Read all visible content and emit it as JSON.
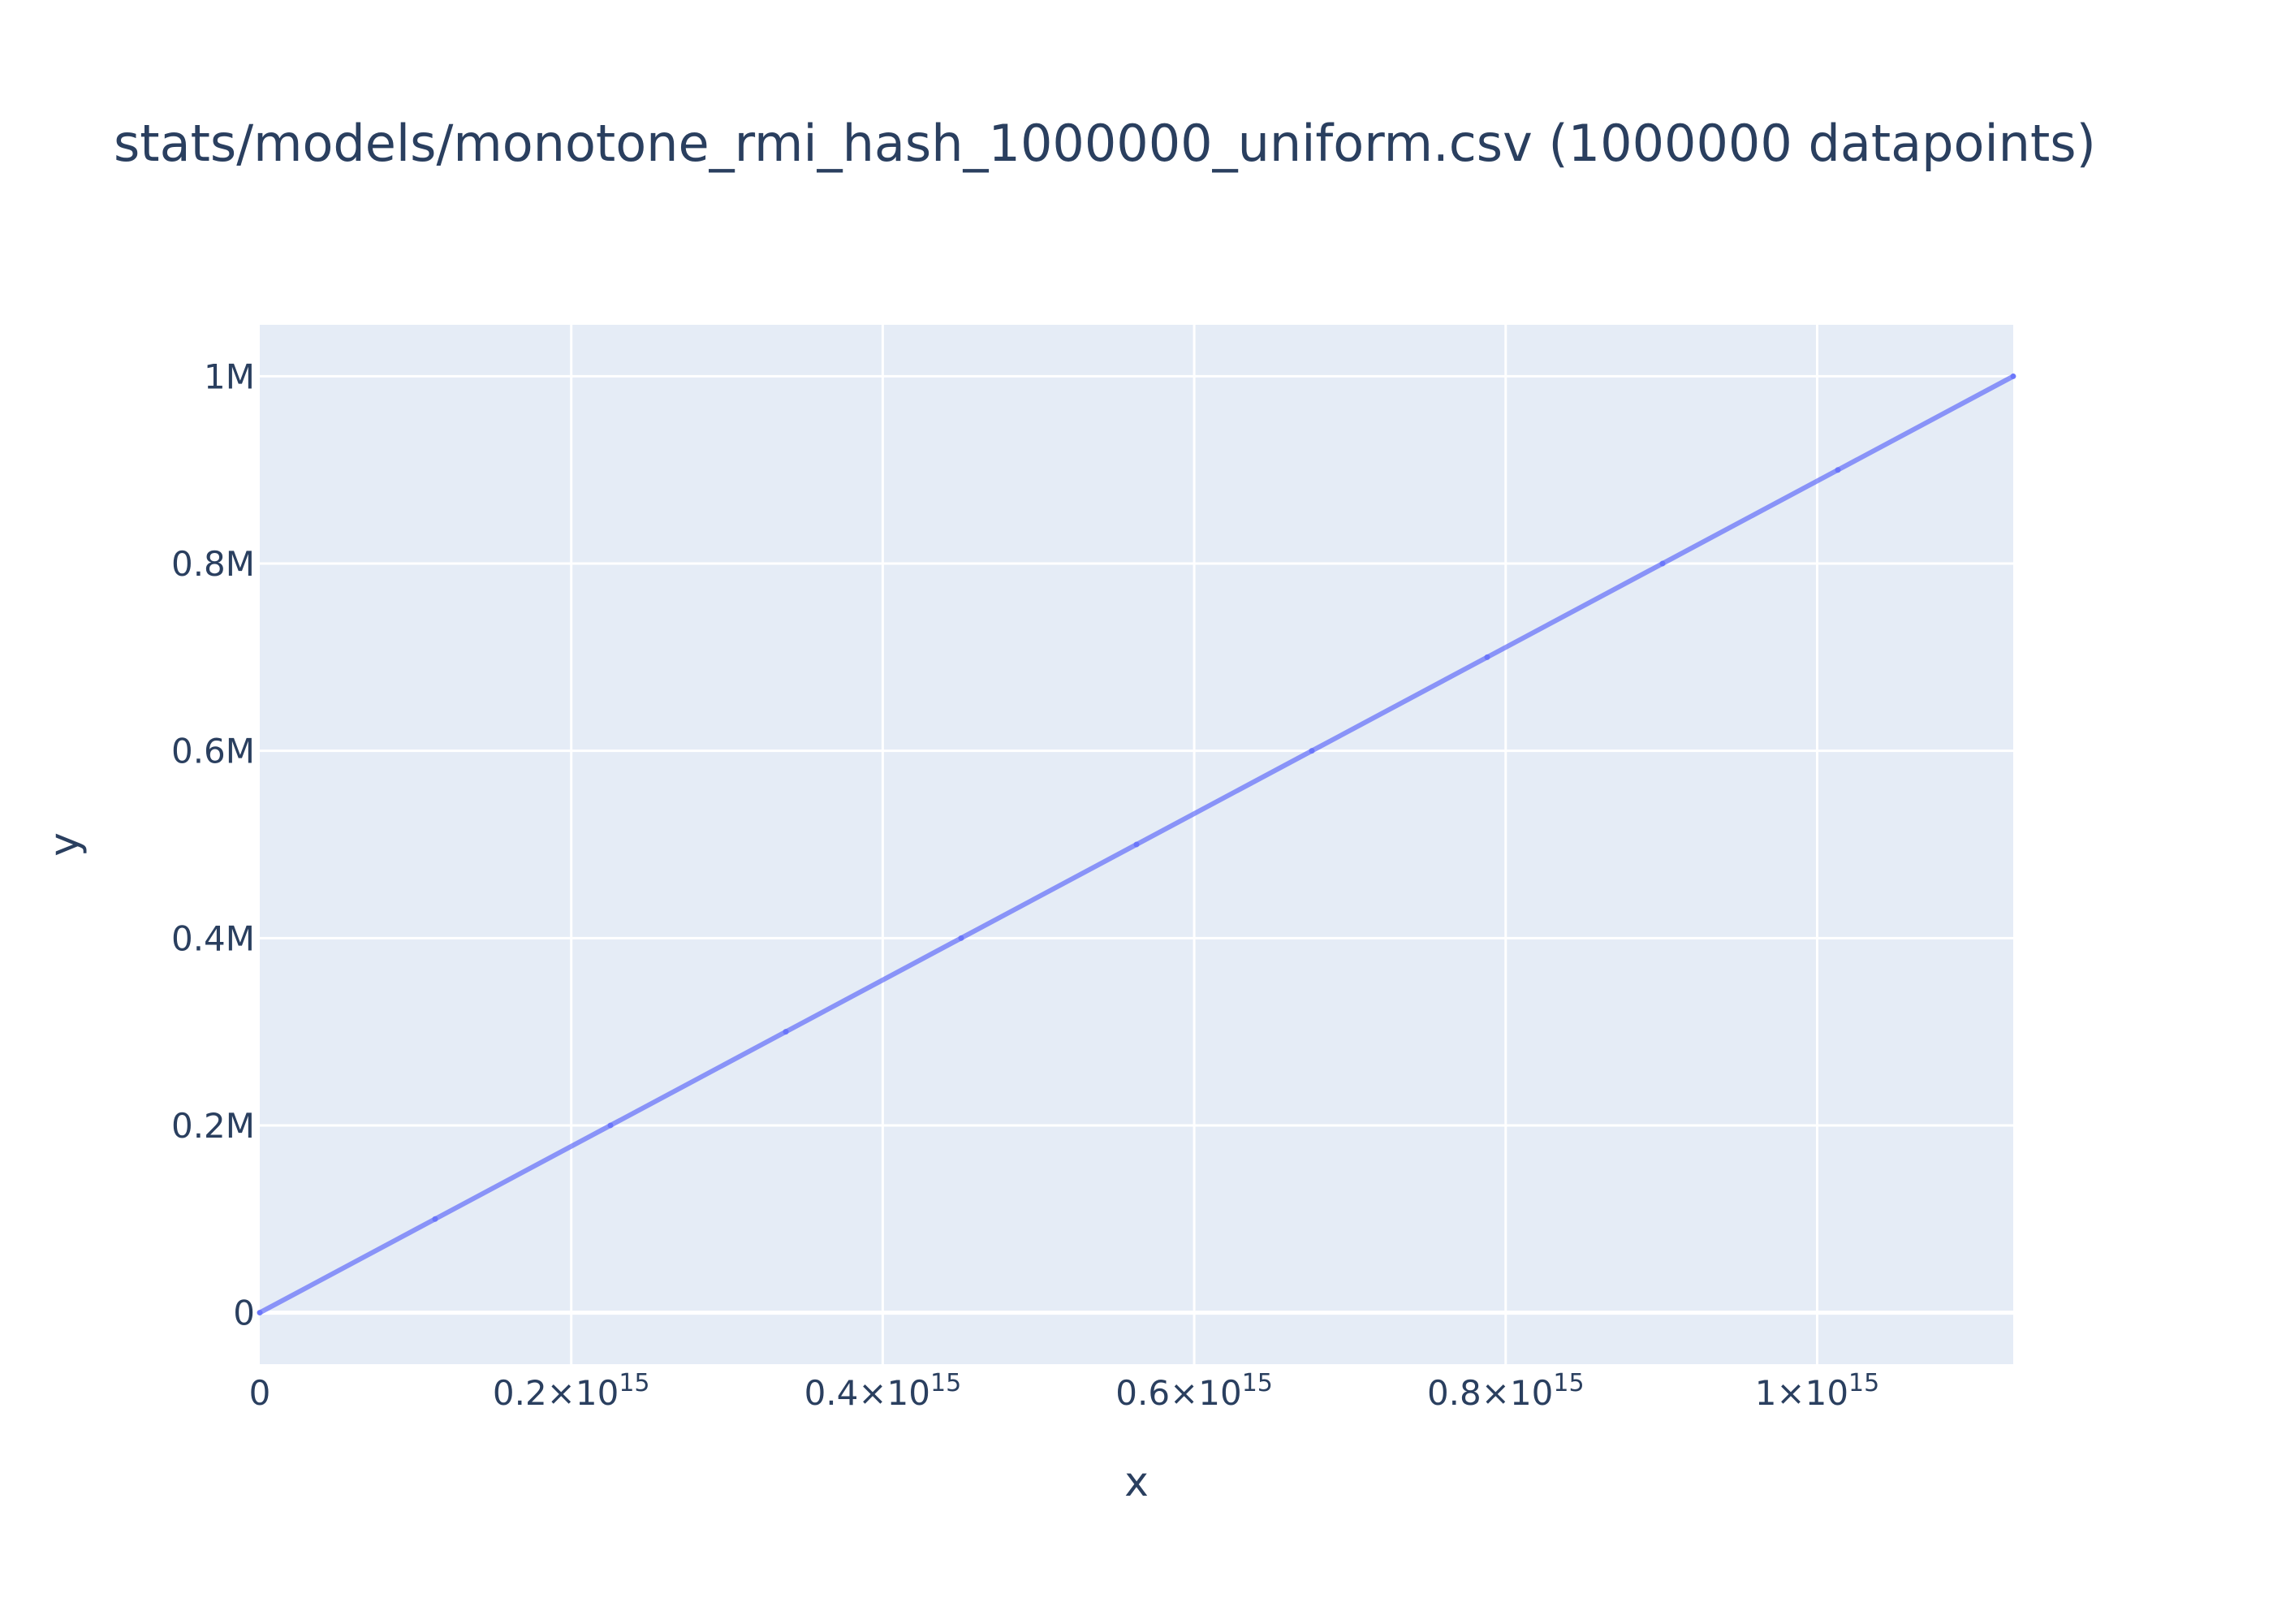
{
  "chart_data": {
    "type": "scatter",
    "title": "stats/models/monotone_rmi_hash_1000000_uniform.csv (1000000 datapoints)",
    "xlabel": "x",
    "ylabel": "y",
    "xlim": [
      0,
      1125899906842624
    ],
    "ylim": [
      -55000,
      1055000
    ],
    "grid": true,
    "x_ticks": [
      {
        "value": 0,
        "label": "0",
        "exp": ""
      },
      {
        "value": 200000000000000,
        "label": "0.2×10",
        "exp": "15"
      },
      {
        "value": 400000000000000,
        "label": "0.4×10",
        "exp": "15"
      },
      {
        "value": 600000000000000,
        "label": "0.6×10",
        "exp": "15"
      },
      {
        "value": 800000000000000,
        "label": "0.8×10",
        "exp": "15"
      },
      {
        "value": 1000000000000000,
        "label": "1×10",
        "exp": "15"
      }
    ],
    "y_ticks": [
      {
        "value": 0,
        "label": "0"
      },
      {
        "value": 200000,
        "label": "0.2M"
      },
      {
        "value": 400000,
        "label": "0.4M"
      },
      {
        "value": 600000,
        "label": "0.6M"
      },
      {
        "value": 800000,
        "label": "0.8M"
      },
      {
        "value": 1000000,
        "label": "1M"
      }
    ],
    "series": [
      {
        "color": "#636efa",
        "x": [
          0,
          112589990684262,
          225179981368525,
          337769972052787,
          450359962737050,
          562949953421312,
          675539944105574,
          788129934789837,
          900719925474099,
          1013309916158362,
          1125899906842624
        ],
        "y": [
          0,
          100000,
          200000,
          300000,
          400000,
          500000,
          600000,
          700000,
          800000,
          900000,
          1000000
        ]
      }
    ]
  },
  "colors": {
    "plot_bg": "#e5ecf6",
    "grid": "#ffffff",
    "text": "#2a3f5f",
    "series": "#636efa"
  }
}
